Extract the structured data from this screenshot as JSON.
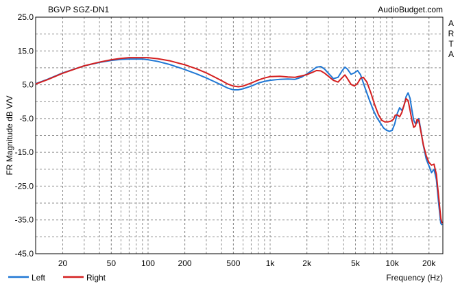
{
  "chart_data": {
    "type": "line",
    "title": "BGVP SGZ-DN1",
    "watermark": "AudioBudget.com",
    "side_label": "ARTA",
    "xlabel": "Frequency (Hz)",
    "ylabel": "FR Magnitude dB V/V",
    "x_scale": "log",
    "xlim": [
      12,
      26000
    ],
    "ylim": [
      -45,
      25
    ],
    "grid": true,
    "legend_position": "bottom-left",
    "y_ticks": [
      {
        "value": 25,
        "label": "25.0"
      },
      {
        "value": 15,
        "label": "15.0"
      },
      {
        "value": 5,
        "label": "5.0"
      },
      {
        "value": -5,
        "label": "-5.0"
      },
      {
        "value": -15,
        "label": "-15.0"
      },
      {
        "value": -25,
        "label": "-25.0"
      },
      {
        "value": -35,
        "label": "-35.0"
      },
      {
        "value": -45,
        "label": "-45.0"
      }
    ],
    "x_ticks": [
      {
        "value": 20,
        "label": "20"
      },
      {
        "value": 50,
        "label": "50"
      },
      {
        "value": 100,
        "label": "100"
      },
      {
        "value": 200,
        "label": "200"
      },
      {
        "value": 500,
        "label": "500"
      },
      {
        "value": 1000,
        "label": "1k"
      },
      {
        "value": 2000,
        "label": "2k"
      },
      {
        "value": 5000,
        "label": "5k"
      },
      {
        "value": 10000,
        "label": "10k"
      },
      {
        "value": 20000,
        "label": "20k"
      }
    ],
    "series": [
      {
        "name": "Left",
        "color": "#1f77d4",
        "points": [
          [
            12,
            5.3
          ],
          [
            15,
            6.6
          ],
          [
            20,
            8.5
          ],
          [
            30,
            10.6
          ],
          [
            40,
            11.6
          ],
          [
            50,
            12.2
          ],
          [
            60,
            12.5
          ],
          [
            70,
            12.6
          ],
          [
            80,
            12.6
          ],
          [
            90,
            12.6
          ],
          [
            100,
            12.4
          ],
          [
            120,
            11.9
          ],
          [
            150,
            11.0
          ],
          [
            200,
            9.5
          ],
          [
            250,
            8.2
          ],
          [
            300,
            7.0
          ],
          [
            350,
            5.9
          ],
          [
            400,
            4.9
          ],
          [
            450,
            4.0
          ],
          [
            500,
            3.5
          ],
          [
            550,
            3.5
          ],
          [
            600,
            3.8
          ],
          [
            700,
            4.6
          ],
          [
            800,
            5.5
          ],
          [
            900,
            6.0
          ],
          [
            1000,
            6.3
          ],
          [
            1200,
            6.6
          ],
          [
            1400,
            6.7
          ],
          [
            1600,
            6.6
          ],
          [
            1800,
            7.2
          ],
          [
            2000,
            8.2
          ],
          [
            2200,
            9.2
          ],
          [
            2400,
            10.2
          ],
          [
            2600,
            10.4
          ],
          [
            2800,
            9.6
          ],
          [
            3000,
            8.4
          ],
          [
            3300,
            6.8
          ],
          [
            3600,
            7.2
          ],
          [
            3900,
            9.2
          ],
          [
            4100,
            10.2
          ],
          [
            4300,
            9.6
          ],
          [
            4600,
            8.1
          ],
          [
            4900,
            8.5
          ],
          [
            5200,
            9.2
          ],
          [
            5500,
            8.0
          ],
          [
            6000,
            4.0
          ],
          [
            6500,
            0.5
          ],
          [
            7000,
            -2.5
          ],
          [
            7500,
            -4.8
          ],
          [
            8000,
            -6.3
          ],
          [
            8500,
            -7.8
          ],
          [
            9000,
            -8.5
          ],
          [
            9500,
            -8.8
          ],
          [
            10000,
            -8.5
          ],
          [
            10500,
            -6.5
          ],
          [
            11000,
            -3.5
          ],
          [
            11500,
            -1.8
          ],
          [
            12000,
            -2.6
          ],
          [
            12500,
            -1.2
          ],
          [
            13000,
            1.5
          ],
          [
            13500,
            2.6
          ],
          [
            14000,
            1.0
          ],
          [
            14500,
            -2.5
          ],
          [
            15000,
            -5.5
          ],
          [
            15500,
            -6.5
          ],
          [
            16000,
            -6.3
          ],
          [
            16500,
            -5.0
          ],
          [
            17000,
            -7.5
          ],
          [
            18000,
            -13.0
          ],
          [
            19000,
            -17.0
          ],
          [
            20000,
            -19.0
          ],
          [
            21000,
            -21.0
          ],
          [
            22000,
            -20.0
          ],
          [
            23000,
            -23.0
          ],
          [
            24000,
            -30.0
          ],
          [
            25000,
            -36.0
          ],
          [
            25600,
            -36.5
          ]
        ]
      },
      {
        "name": "Right",
        "color": "#d41f1f",
        "points": [
          [
            12,
            5.2
          ],
          [
            15,
            6.5
          ],
          [
            20,
            8.4
          ],
          [
            30,
            10.6
          ],
          [
            40,
            11.7
          ],
          [
            50,
            12.4
          ],
          [
            60,
            12.8
          ],
          [
            70,
            13.0
          ],
          [
            80,
            13.0
          ],
          [
            90,
            13.0
          ],
          [
            100,
            13.0
          ],
          [
            120,
            12.7
          ],
          [
            150,
            12.1
          ],
          [
            200,
            10.9
          ],
          [
            250,
            9.7
          ],
          [
            300,
            8.5
          ],
          [
            350,
            7.3
          ],
          [
            400,
            6.2
          ],
          [
            450,
            5.2
          ],
          [
            500,
            4.6
          ],
          [
            550,
            4.4
          ],
          [
            600,
            4.6
          ],
          [
            700,
            5.5
          ],
          [
            800,
            6.4
          ],
          [
            900,
            7.0
          ],
          [
            1000,
            7.4
          ],
          [
            1200,
            7.5
          ],
          [
            1400,
            7.3
          ],
          [
            1600,
            7.2
          ],
          [
            1800,
            7.6
          ],
          [
            2000,
            8.0
          ],
          [
            2200,
            8.6
          ],
          [
            2400,
            9.2
          ],
          [
            2600,
            9.1
          ],
          [
            2800,
            8.4
          ],
          [
            3000,
            7.5
          ],
          [
            3300,
            6.3
          ],
          [
            3600,
            5.8
          ],
          [
            3900,
            7.1
          ],
          [
            4100,
            7.9
          ],
          [
            4300,
            6.8
          ],
          [
            4600,
            5.1
          ],
          [
            4900,
            4.6
          ],
          [
            5200,
            5.4
          ],
          [
            5500,
            6.9
          ],
          [
            5800,
            7.2
          ],
          [
            6200,
            5.8
          ],
          [
            6700,
            2.5
          ],
          [
            7200,
            -1.0
          ],
          [
            7700,
            -3.8
          ],
          [
            8200,
            -5.5
          ],
          [
            8700,
            -6.0
          ],
          [
            9200,
            -6.0
          ],
          [
            9700,
            -5.8
          ],
          [
            10200,
            -5.3
          ],
          [
            10600,
            -4.0
          ],
          [
            11000,
            -3.9
          ],
          [
            11500,
            -4.5
          ],
          [
            12000,
            -3.2
          ],
          [
            12500,
            -1.0
          ],
          [
            13000,
            0.9
          ],
          [
            13500,
            0.3
          ],
          [
            14000,
            -2.5
          ],
          [
            14500,
            -5.5
          ],
          [
            15000,
            -7.6
          ],
          [
            15500,
            -7.2
          ],
          [
            16000,
            -5.2
          ],
          [
            16500,
            -5.5
          ],
          [
            17000,
            -8.0
          ],
          [
            18000,
            -12.8
          ],
          [
            19000,
            -16.0
          ],
          [
            20000,
            -18.0
          ],
          [
            21000,
            -18.8
          ],
          [
            22000,
            -18.5
          ],
          [
            23000,
            -21.5
          ],
          [
            24000,
            -28.0
          ],
          [
            25000,
            -34.5
          ],
          [
            25600,
            -36.0
          ]
        ]
      }
    ]
  }
}
